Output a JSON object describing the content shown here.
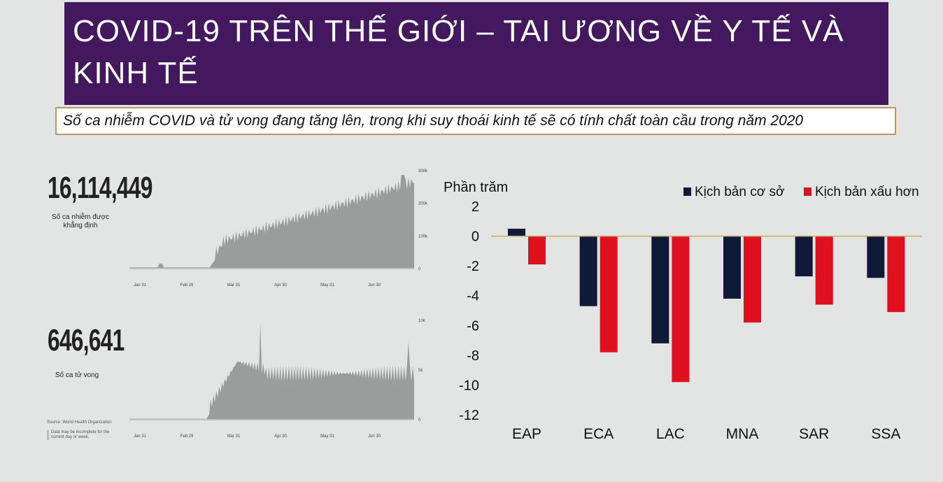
{
  "title": "COVID-19 TRÊN THẾ GIỚI – TAI ƯƠNG VỀ Y TẾ VÀ\nKINH TẾ",
  "subtitle": "Số ca nhiễm COVID và tử vong đang tăng lên, trong khi suy thoái kinh tế sẽ có tính chất toàn cầu trong năm 2020",
  "cases": {
    "number": "16,114,449",
    "label": "Số ca nhiễm được khẳng định",
    "xticks": [
      "Jan 31",
      "Feb 29",
      "Mar 31",
      "Apr 30",
      "May 31",
      "Jun 30"
    ],
    "yticks": [
      "300k",
      "200k",
      "100k",
      "0"
    ]
  },
  "deaths": {
    "number": "646,641",
    "label": "Số ca tử vong",
    "xticks": [
      "Jan 31",
      "Feb 29",
      "Mar 31",
      "Apr 30",
      "May 31",
      "Jun 30"
    ],
    "yticks": [
      "10k",
      "5k",
      "0"
    ]
  },
  "source_note": "Source: World Health Organization",
  "data_note": "Data may be incomplete for the current day or week.",
  "colors": {
    "banner": "#43185f",
    "base": "#0f1a38",
    "worse": "#e0111f",
    "bars_gray": "#9b9d9c"
  },
  "chart_data": [
    {
      "type": "bar",
      "ylabel": "Phần trăm",
      "categories": [
        "EAP",
        "ECA",
        "LAC",
        "MNA",
        "SAR",
        "SSA"
      ],
      "ylim": [
        -12,
        2
      ],
      "yticks": [
        2,
        0,
        -2,
        -4,
        -6,
        -8,
        -10,
        -12
      ],
      "legend_position": "top-right",
      "series": [
        {
          "name": "Kịch bản cơ sở",
          "color": "#0f1a38",
          "values": [
            0.5,
            -4.7,
            -7.2,
            -4.2,
            -2.7,
            -2.8
          ]
        },
        {
          "name": "Kịch bản xấu hơn",
          "color": "#e0111f",
          "values": [
            -1.9,
            -7.8,
            -9.8,
            -5.8,
            -4.6,
            -5.1
          ]
        }
      ]
    }
  ]
}
